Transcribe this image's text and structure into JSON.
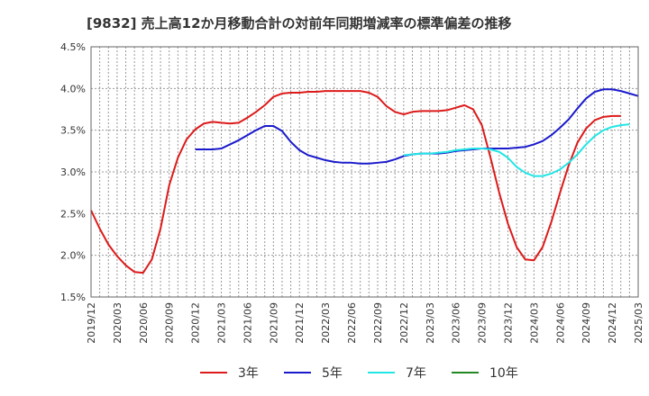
{
  "chart_data": {
    "type": "line",
    "title": "[9832]  売上高12か月移動合計の対前年同期増減率の標準偏差の推移",
    "xlabel": "",
    "ylabel": "",
    "ylim": [
      1.5,
      4.5
    ],
    "yticks": [
      1.5,
      2.0,
      2.5,
      3.0,
      3.5,
      4.0,
      4.5
    ],
    "ytick_labels": [
      "1.5%",
      "2.0%",
      "2.5%",
      "3.0%",
      "3.5%",
      "4.0%",
      "4.5%"
    ],
    "xtick_labels": [
      "2019/12",
      "2020/03",
      "2020/06",
      "2020/09",
      "2020/12",
      "2021/03",
      "2021/06",
      "2021/09",
      "2021/12",
      "2022/03",
      "2022/06",
      "2022/09",
      "2022/12",
      "2023/03",
      "2023/06",
      "2023/09",
      "2023/12",
      "2024/03",
      "2024/06",
      "2024/09",
      "2024/12",
      "2025/03"
    ],
    "x_start": "2019/12",
    "grid": true,
    "legend_position": "bottom",
    "series": [
      {
        "name": "3年",
        "color": "#dd1a1a",
        "start_index": 0,
        "values": [
          2.54,
          2.32,
          2.13,
          1.99,
          1.88,
          1.8,
          1.79,
          1.95,
          2.32,
          2.84,
          3.17,
          3.39,
          3.51,
          3.58,
          3.6,
          3.59,
          3.58,
          3.59,
          3.65,
          3.72,
          3.8,
          3.9,
          3.94,
          3.95,
          3.95,
          3.96,
          3.96,
          3.97,
          3.97,
          3.97,
          3.97,
          3.97,
          3.95,
          3.9,
          3.79,
          3.72,
          3.69,
          3.72,
          3.73,
          3.73,
          3.73,
          3.74,
          3.77,
          3.8,
          3.75,
          3.56,
          3.17,
          2.75,
          2.38,
          2.1,
          1.95,
          1.94,
          2.1,
          2.4,
          2.75,
          3.08,
          3.35,
          3.52,
          3.62,
          3.66,
          3.67,
          3.67
        ]
      },
      {
        "name": "5年",
        "color": "#1a1acc",
        "start_index": 12,
        "values": [
          3.27,
          3.27,
          3.27,
          3.28,
          3.33,
          3.38,
          3.44,
          3.5,
          3.55,
          3.55,
          3.49,
          3.36,
          3.26,
          3.2,
          3.17,
          3.14,
          3.12,
          3.11,
          3.11,
          3.1,
          3.1,
          3.11,
          3.12,
          3.15,
          3.19,
          3.21,
          3.22,
          3.22,
          3.22,
          3.23,
          3.25,
          3.26,
          3.27,
          3.28,
          3.28,
          3.28,
          3.28,
          3.29,
          3.3,
          3.33,
          3.37,
          3.44,
          3.53,
          3.63,
          3.76,
          3.88,
          3.96,
          3.99,
          3.99,
          3.97,
          3.94,
          3.91
        ]
      },
      {
        "name": "7年",
        "color": "#22e5e5",
        "start_index": 36,
        "values": [
          3.2,
          3.21,
          3.22,
          3.22,
          3.23,
          3.24,
          3.26,
          3.27,
          3.28,
          3.28,
          3.27,
          3.24,
          3.17,
          3.06,
          2.99,
          2.95,
          2.95,
          2.98,
          3.03,
          3.11,
          3.21,
          3.33,
          3.43,
          3.5,
          3.54,
          3.56,
          3.57
        ]
      },
      {
        "name": "10年",
        "color": "#228822",
        "start_index": 0,
        "values": []
      }
    ]
  }
}
